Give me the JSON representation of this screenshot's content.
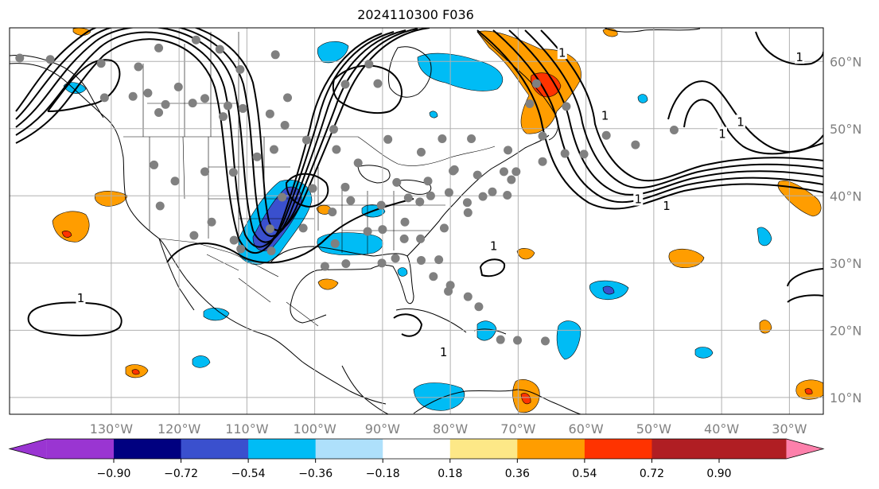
{
  "title": "2024110300 F036",
  "map": {
    "projection": "PlateCarree",
    "lon_range": [
      -145,
      -25
    ],
    "lat_range": [
      7.5,
      65
    ],
    "gridlines": true,
    "lon_ticks": [
      {
        "lon": -130,
        "label": "130°W"
      },
      {
        "lon": -120,
        "label": "120°W"
      },
      {
        "lon": -110,
        "label": "110°W"
      },
      {
        "lon": -100,
        "label": "100°W"
      },
      {
        "lon": -90,
        "label": "90°W"
      },
      {
        "lon": -80,
        "label": "80°W"
      },
      {
        "lon": -70,
        "label": "70°W"
      },
      {
        "lon": -60,
        "label": "60°W"
      },
      {
        "lon": -50,
        "label": "50°W"
      },
      {
        "lon": -40,
        "label": "40°W"
      },
      {
        "lon": -30,
        "label": "30°W"
      }
    ],
    "lat_ticks": [
      {
        "lat": 60,
        "label": "60°N"
      },
      {
        "lat": 50,
        "label": "50°N"
      },
      {
        "lat": 40,
        "label": "40°N"
      },
      {
        "lat": 30,
        "label": "30°N"
      },
      {
        "lat": 20,
        "label": "20°N"
      },
      {
        "lat": 10,
        "label": "10°N"
      }
    ],
    "contour_labels": [
      {
        "text": "1",
        "lon": -134.5,
        "lat": 24.8
      },
      {
        "text": "1",
        "lon": -73.6,
        "lat": 32.5
      },
      {
        "text": "1",
        "lon": -57.2,
        "lat": 51.9
      },
      {
        "text": "1",
        "lon": -52.3,
        "lat": 39.5
      },
      {
        "text": "1",
        "lon": -48.1,
        "lat": 38.5
      },
      {
        "text": "1",
        "lon": -39.9,
        "lat": 49.2
      },
      {
        "text": "1",
        "lon": -37.2,
        "lat": 51.0
      },
      {
        "text": "1",
        "lon": -28.5,
        "lat": 60.6
      },
      {
        "text": "1",
        "lon": -63.5,
        "lat": 61.3
      },
      {
        "text": "1",
        "lon": -81.0,
        "lat": 16.7
      }
    ],
    "station_color": "#808080",
    "stations": [
      [
        -143.5,
        60.5
      ],
      [
        -139,
        60.3
      ],
      [
        -131.5,
        59.7
      ],
      [
        -126,
        59.2
      ],
      [
        -123,
        62
      ],
      [
        -117.5,
        63.2
      ],
      [
        -114,
        61.8
      ],
      [
        -131,
        54.6
      ],
      [
        -124.6,
        55.3
      ],
      [
        -123,
        52.4
      ],
      [
        -122,
        53.6
      ],
      [
        -118,
        53.8
      ],
      [
        -116.2,
        54.5
      ],
      [
        -112.8,
        53.4
      ],
      [
        -110.6,
        53
      ],
      [
        -113.5,
        51.8
      ],
      [
        -106.6,
        52.2
      ],
      [
        -104,
        54.6
      ],
      [
        -104.4,
        50.5
      ],
      [
        -97.2,
        49.9
      ],
      [
        -106,
        46.9
      ],
      [
        -101.2,
        48.3
      ],
      [
        -92,
        59.6
      ],
      [
        -90.7,
        56.7
      ],
      [
        -89.2,
        48.4
      ],
      [
        -81.2,
        48.5
      ],
      [
        -84.3,
        46.5
      ],
      [
        -76.9,
        48.5
      ],
      [
        -71.5,
        46.8
      ],
      [
        -66.4,
        48.9
      ],
      [
        -63.1,
        46.3
      ],
      [
        -60.3,
        46.2
      ],
      [
        -66.4,
        45.1
      ],
      [
        -72.1,
        43.6
      ],
      [
        -76,
        43.1
      ],
      [
        -79.6,
        43.7
      ],
      [
        -83.3,
        42.2
      ],
      [
        -87.9,
        42
      ],
      [
        -93.6,
        44.9
      ],
      [
        -96.8,
        46.9
      ],
      [
        -108.5,
        45.8
      ],
      [
        -112,
        43.5
      ],
      [
        -116.2,
        43.6
      ],
      [
        -120.6,
        42.2
      ],
      [
        -123.7,
        44.6
      ],
      [
        -122.8,
        38.5
      ],
      [
        -117.8,
        34.1
      ],
      [
        -115.2,
        36.1
      ],
      [
        -111.9,
        33.4
      ],
      [
        -106.6,
        35.1
      ],
      [
        -104.8,
        39.8
      ],
      [
        -101.7,
        35.2
      ],
      [
        -100.3,
        41.1
      ],
      [
        -97.4,
        37.6
      ],
      [
        -95.5,
        41.3
      ],
      [
        -94.7,
        39.3
      ],
      [
        -90.2,
        38.6
      ],
      [
        -86.2,
        39.7
      ],
      [
        -84.5,
        39.1
      ],
      [
        -82.9,
        40
      ],
      [
        -80.2,
        40.5
      ],
      [
        -77.5,
        39
      ],
      [
        -75.2,
        39.9
      ],
      [
        -73.8,
        40.6
      ],
      [
        -71,
        42.4
      ],
      [
        -70.3,
        43.6
      ],
      [
        -77.4,
        37.5
      ],
      [
        -80.9,
        35.2
      ],
      [
        -84.4,
        33.6
      ],
      [
        -86.7,
        36.1
      ],
      [
        -90,
        35
      ],
      [
        -92.2,
        34.7
      ],
      [
        -97,
        32.9
      ],
      [
        -95.4,
        29.9
      ],
      [
        -98.5,
        29.5
      ],
      [
        -106.4,
        31.8
      ],
      [
        -110.9,
        32.1
      ],
      [
        -90.1,
        30
      ],
      [
        -86.8,
        33.6
      ],
      [
        -88.1,
        30.7
      ],
      [
        -84.3,
        30.4
      ],
      [
        -81.7,
        30.5
      ],
      [
        -80.3,
        25.8
      ],
      [
        -82.5,
        28
      ],
      [
        -79.4,
        43.9
      ],
      [
        -62.9,
        53.3
      ],
      [
        -67.3,
        56.7
      ],
      [
        -52.7,
        47.6
      ],
      [
        -57,
        49
      ],
      [
        -47,
        49.8
      ],
      [
        -72.6,
        18.6
      ],
      [
        -70.1,
        18.5
      ],
      [
        -66,
        18.4
      ],
      [
        -77.4,
        25
      ],
      [
        -75.8,
        23.5
      ],
      [
        -80,
        26.7
      ],
      [
        -68.3,
        53.7
      ],
      [
        -95.5,
        56.6
      ],
      [
        -105.8,
        61
      ],
      [
        -111,
        58.8
      ],
      [
        -120.1,
        56.2
      ],
      [
        -126.8,
        54.8
      ],
      [
        -71.6,
        40.1
      ]
    ],
    "colorbar": {
      "ticks": [
        "−0.90",
        "−0.72",
        "−0.54",
        "−0.36",
        "−0.18",
        "0.18",
        "0.36",
        "0.54",
        "0.72",
        "0.90"
      ],
      "colors": [
        "#9a35d2",
        "#000080",
        "#3a50ce",
        "#00bcf5",
        "#aee0fb",
        "#ffffff",
        "#fde887",
        "#ff9d00",
        "#ff3300",
        "#b01e23",
        "#fd80ab"
      ]
    }
  }
}
